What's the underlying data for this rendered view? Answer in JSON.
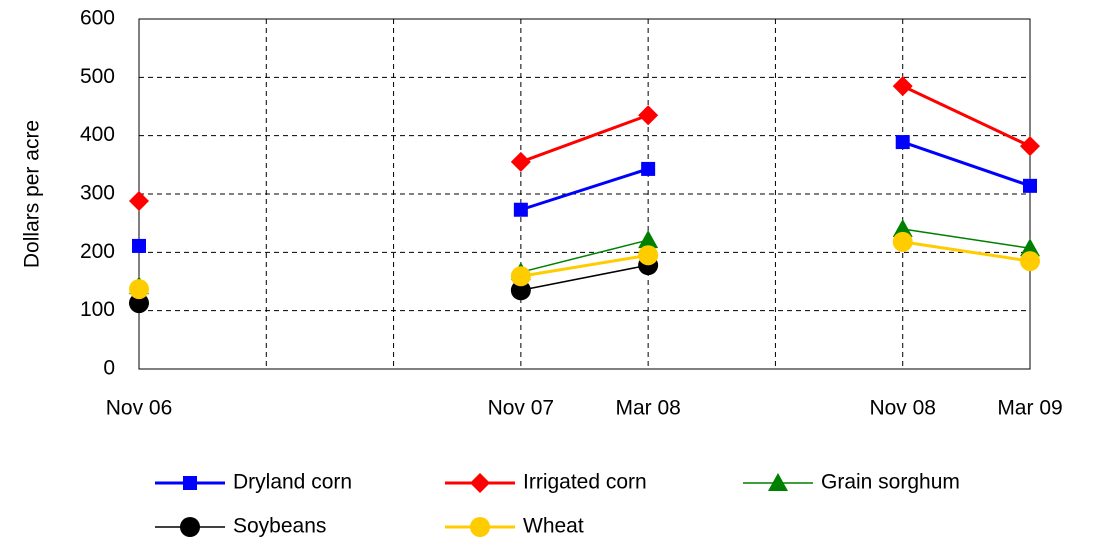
{
  "chart_data": {
    "type": "line",
    "y_label": "Dollars per acre",
    "categories": [
      "Nov 06",
      null,
      null,
      "Nov 07",
      "Mar 08",
      null,
      "Nov 08",
      "Mar 09"
    ],
    "ylim": [
      0,
      600
    ],
    "yticks": [
      0,
      100,
      200,
      300,
      400,
      500,
      600
    ],
    "grid": true,
    "series": [
      {
        "name": "Dryland corn",
        "color": "#0000ff",
        "marker": "square",
        "line_width": 3,
        "values": [
          211,
          null,
          null,
          273,
          343,
          null,
          389,
          314
        ]
      },
      {
        "name": "Irrigated corn",
        "color": "#ff0000",
        "marker": "diamond",
        "line_width": 3,
        "values": [
          288,
          null,
          null,
          355,
          435,
          null,
          485,
          382
        ]
      },
      {
        "name": "Grain sorghum",
        "color": "#008000",
        "marker": "triangle",
        "line_width": 1.5,
        "values": [
          142,
          null,
          null,
          166,
          221,
          null,
          240,
          207
        ]
      },
      {
        "name": "Soybeans",
        "color": "#000000",
        "marker": "circle",
        "line_width": 1.5,
        "values": [
          113,
          null,
          null,
          135,
          178,
          null,
          null,
          null
        ]
      },
      {
        "name": "Wheat",
        "color": "#ffcc00",
        "marker": "circle",
        "line_width": 3,
        "values": [
          137,
          null,
          null,
          159,
          195,
          null,
          218,
          185
        ]
      }
    ]
  }
}
